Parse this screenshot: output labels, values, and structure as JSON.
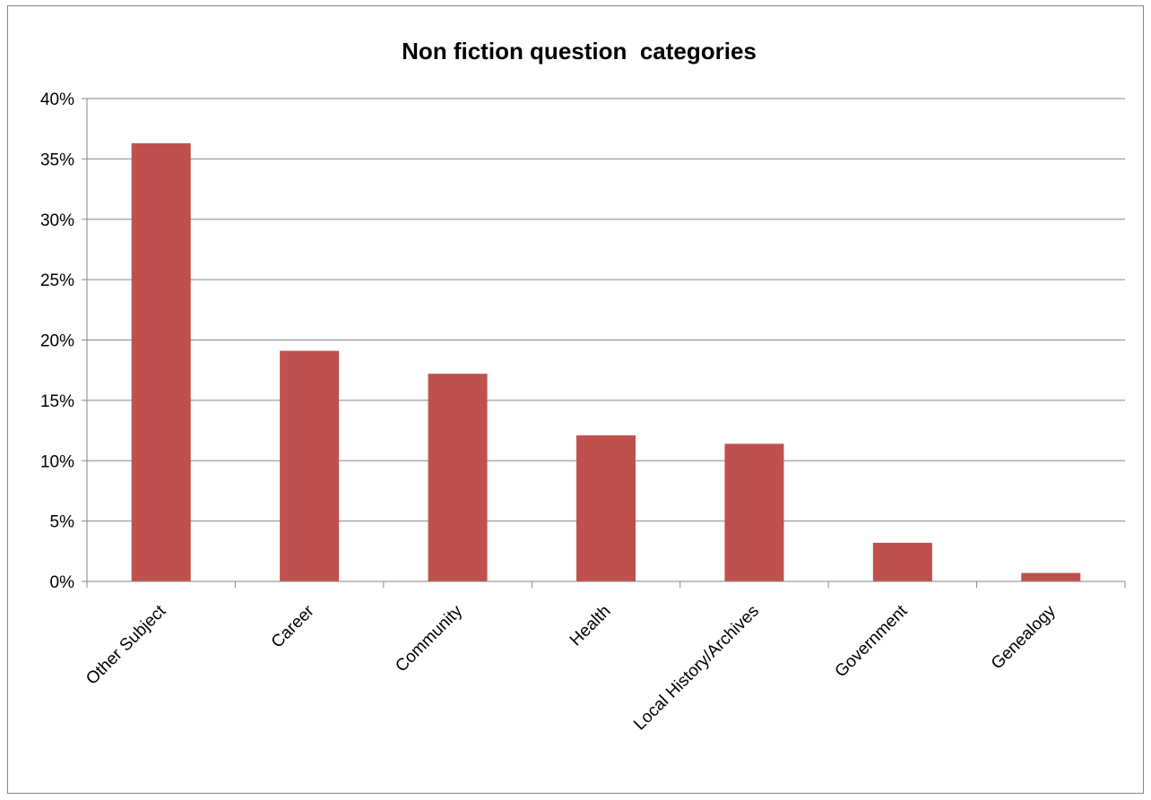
{
  "chart_data": {
    "type": "bar",
    "title": "Non fiction question  categories",
    "xlabel": "",
    "ylabel": "",
    "categories": [
      "Other Subject",
      "Career",
      "Community",
      "Health",
      "Local History/Archives",
      "Government",
      "Genealogy"
    ],
    "values": [
      36.3,
      19.1,
      17.2,
      12.1,
      11.4,
      3.2,
      0.7
    ],
    "ylim": [
      0,
      40
    ],
    "yticks": [
      "0%",
      "5%",
      "10%",
      "15%",
      "20%",
      "25%",
      "30%",
      "35%",
      "40%"
    ],
    "grid": true,
    "legend": "none",
    "bar_color": "#C0504D"
  }
}
